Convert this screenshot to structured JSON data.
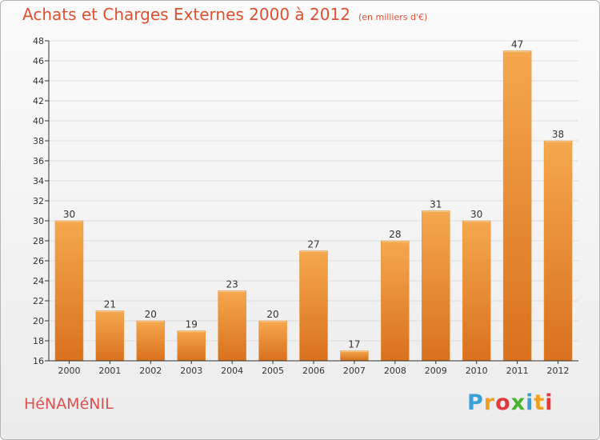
{
  "header": {
    "title": "Achats et Charges Externes 2000 à 2012",
    "subtitle": "(en milliers d'€)"
  },
  "footer": {
    "commune": "HéNAMéNIL",
    "brand_letters": [
      "P",
      "r",
      "o",
      "x",
      "i",
      "t",
      "i"
    ],
    "brand_colors": [
      "#3aa0d8",
      "#f0a020",
      "#e03a3a",
      "#4ab030",
      "#3aa0d8",
      "#f0a020",
      "#e03a3a"
    ]
  },
  "colors": {
    "bar_top": "#f5a84e",
    "bar_bottom": "#d9711e",
    "grid": "#dddddd",
    "axis": "#333333"
  },
  "chart_data": {
    "type": "bar",
    "title": "Achats et Charges Externes 2000 à 2012",
    "subtitle": "(en milliers d'€)",
    "categories": [
      "2000",
      "2001",
      "2002",
      "2003",
      "2004",
      "2005",
      "2006",
      "2007",
      "2008",
      "2009",
      "2010",
      "2011",
      "2012"
    ],
    "values": [
      30,
      21,
      20,
      19,
      23,
      20,
      27,
      17,
      28,
      31,
      30,
      47,
      38
    ],
    "ylim": [
      16,
      48
    ],
    "yticks": [
      16,
      18,
      20,
      22,
      24,
      26,
      28,
      30,
      32,
      34,
      36,
      38,
      40,
      42,
      44,
      46,
      48
    ],
    "grid": true,
    "data_labels": true
  }
}
